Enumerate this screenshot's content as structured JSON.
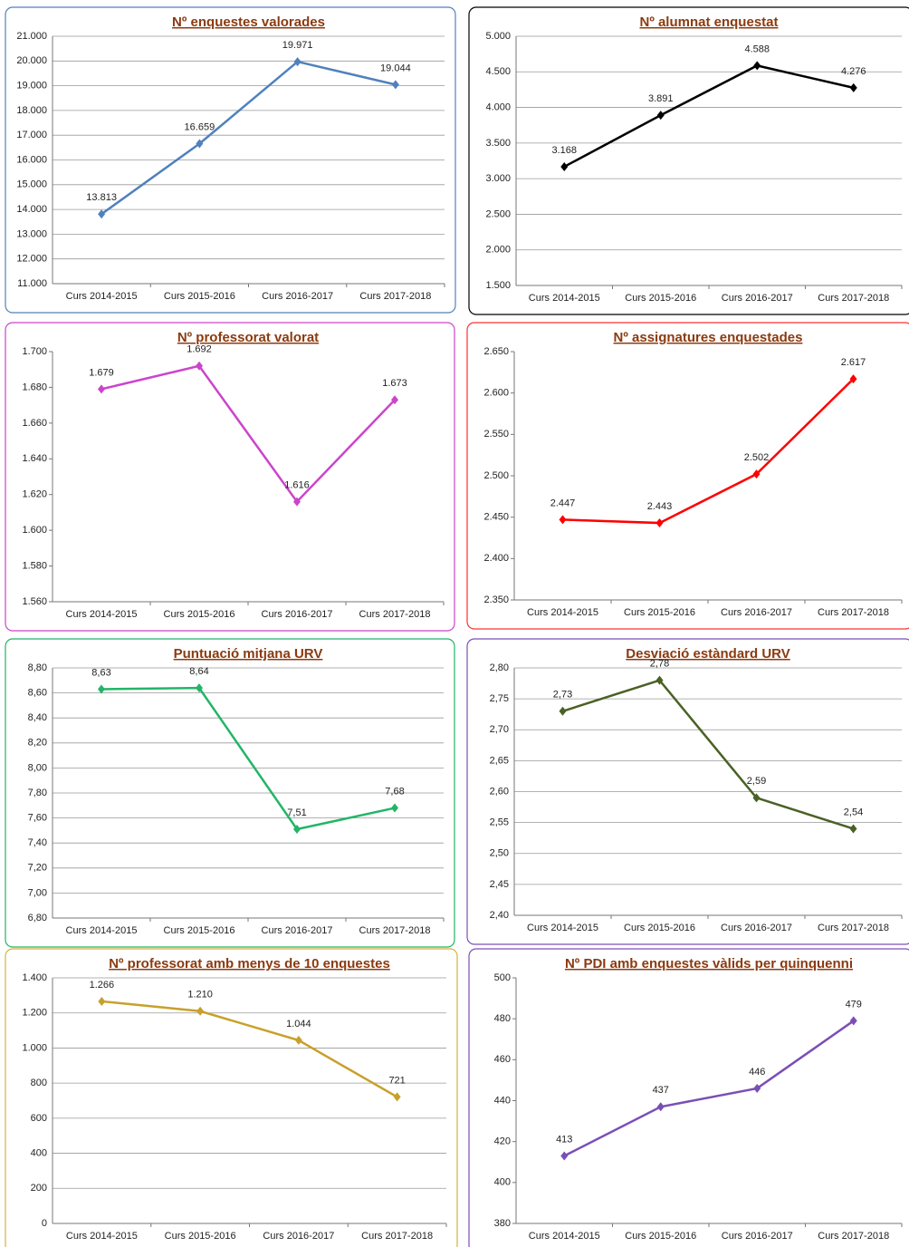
{
  "chart_data": [
    {
      "type": "line",
      "title": "Nº enquestes valorades",
      "categories": [
        "Curs 2014-2015",
        "Curs 2015-2016",
        "Curs 2016-2017",
        "Curs 2017-2018"
      ],
      "values": [
        13813,
        16659,
        19971,
        19044
      ],
      "value_labels": [
        "13.813",
        "16.659",
        "19.971",
        "19.044"
      ],
      "color": "#4f81bd",
      "ylim": [
        11000,
        21000
      ],
      "yticks": [
        {
          "value": 11000,
          "label": "11.000"
        },
        {
          "value": 12000,
          "label": "12.000"
        },
        {
          "value": 13000,
          "label": "13.000"
        },
        {
          "value": 14000,
          "label": "14.000"
        },
        {
          "value": 15000,
          "label": "15.000"
        },
        {
          "value": 16000,
          "label": "16.000"
        },
        {
          "value": 17000,
          "label": "17.000"
        },
        {
          "value": 18000,
          "label": "18.000"
        },
        {
          "value": 19000,
          "label": "19.000"
        },
        {
          "value": 20000,
          "label": "20.000"
        },
        {
          "value": 21000,
          "label": "21.000"
        }
      ],
      "grid": true
    },
    {
      "type": "line",
      "title": "Nº alumnat enquestat",
      "categories": [
        "Curs 2014-2015",
        "Curs 2015-2016",
        "Curs 2016-2017",
        "Curs 2017-2018"
      ],
      "values": [
        3168,
        3891,
        4588,
        4276
      ],
      "value_labels": [
        "3.168",
        "3.891",
        "4.588",
        "4.276"
      ],
      "color": "#000000",
      "ylim": [
        1500,
        5000
      ],
      "yticks": [
        {
          "value": 1500,
          "label": "1.500"
        },
        {
          "value": 2000,
          "label": "2.000"
        },
        {
          "value": 2500,
          "label": "2.500"
        },
        {
          "value": 3000,
          "label": "3.000"
        },
        {
          "value": 3500,
          "label": "3.500"
        },
        {
          "value": 4000,
          "label": "4.000"
        },
        {
          "value": 4500,
          "label": "4.500"
        },
        {
          "value": 5000,
          "label": "5.000"
        }
      ],
      "grid": true
    },
    {
      "type": "line",
      "title": "Nº professorat valorat",
      "categories": [
        "Curs 2014-2015",
        "Curs 2015-2016",
        "Curs 2016-2017",
        "Curs 2017-2018"
      ],
      "values": [
        1679,
        1692,
        1616,
        1673
      ],
      "value_labels": [
        "1.679",
        "1.692",
        "1.616",
        "1.673"
      ],
      "color": "#cc44cc",
      "ylim": [
        1560,
        1700
      ],
      "yticks": [
        {
          "value": 1560,
          "label": "1.560"
        },
        {
          "value": 1580,
          "label": "1.580"
        },
        {
          "value": 1600,
          "label": "1.600"
        },
        {
          "value": 1620,
          "label": "1.620"
        },
        {
          "value": 1640,
          "label": "1.640"
        },
        {
          "value": 1660,
          "label": "1.660"
        },
        {
          "value": 1680,
          "label": "1.680"
        },
        {
          "value": 1700,
          "label": "1.700"
        }
      ],
      "grid": false
    },
    {
      "type": "line",
      "title": "Nº assignatures enquestades",
      "categories": [
        "Curs 2014-2015",
        "Curs 2015-2016",
        "Curs 2016-2017",
        "Curs 2017-2018"
      ],
      "values": [
        2447,
        2443,
        2502,
        2617
      ],
      "value_labels": [
        "2.447",
        "2.443",
        "2.502",
        "2.617"
      ],
      "color": "#ff0000",
      "ylim": [
        2350,
        2650
      ],
      "yticks": [
        {
          "value": 2350,
          "label": "2.350"
        },
        {
          "value": 2400,
          "label": "2.400"
        },
        {
          "value": 2450,
          "label": "2.450"
        },
        {
          "value": 2500,
          "label": "2.500"
        },
        {
          "value": 2550,
          "label": "2.550"
        },
        {
          "value": 2600,
          "label": "2.600"
        },
        {
          "value": 2650,
          "label": "2.650"
        }
      ],
      "grid": false
    },
    {
      "type": "line",
      "title": "Puntuació mitjana URV",
      "categories": [
        "Curs 2014-2015",
        "Curs 2015-2016",
        "Curs 2016-2017",
        "Curs 2017-2018"
      ],
      "values": [
        8.63,
        8.64,
        7.51,
        7.68
      ],
      "value_labels": [
        "8,63",
        "8,64",
        "7,51",
        "7,68"
      ],
      "color": "#22b566",
      "ylim": [
        6.8,
        8.8
      ],
      "yticks": [
        {
          "value": 6.8,
          "label": "6,80"
        },
        {
          "value": 7.0,
          "label": "7,00"
        },
        {
          "value": 7.2,
          "label": "7,20"
        },
        {
          "value": 7.4,
          "label": "7,40"
        },
        {
          "value": 7.6,
          "label": "7,60"
        },
        {
          "value": 7.8,
          "label": "7,80"
        },
        {
          "value": 8.0,
          "label": "8,00"
        },
        {
          "value": 8.2,
          "label": "8,20"
        },
        {
          "value": 8.4,
          "label": "8,40"
        },
        {
          "value": 8.6,
          "label": "8,60"
        },
        {
          "value": 8.8,
          "label": "8,80"
        }
      ],
      "grid": true
    },
    {
      "type": "line",
      "title": "Desviació estàndard URV",
      "categories": [
        "Curs 2014-2015",
        "Curs 2015-2016",
        "Curs 2016-2017",
        "Curs 2017-2018"
      ],
      "values": [
        2.73,
        2.78,
        2.59,
        2.54
      ],
      "value_labels": [
        "2,73",
        "2,78",
        "2,59",
        "2,54"
      ],
      "color": "#4a6125",
      "ylim": [
        2.4,
        2.8
      ],
      "yticks": [
        {
          "value": 2.4,
          "label": "2,40"
        },
        {
          "value": 2.45,
          "label": "2,45"
        },
        {
          "value": 2.5,
          "label": "2,50"
        },
        {
          "value": 2.55,
          "label": "2,55"
        },
        {
          "value": 2.6,
          "label": "2,60"
        },
        {
          "value": 2.65,
          "label": "2,65"
        },
        {
          "value": 2.7,
          "label": "2,70"
        },
        {
          "value": 2.75,
          "label": "2,75"
        },
        {
          "value": 2.8,
          "label": "2,80"
        }
      ],
      "grid": true
    },
    {
      "type": "line",
      "title": "Nº professorat amb menys de 10 enquestes",
      "categories": [
        "Curs 2014-2015",
        "Curs 2015-2016",
        "Curs 2016-2017",
        "Curs 2017-2018"
      ],
      "values": [
        1266,
        1210,
        1044,
        721
      ],
      "value_labels": [
        "1.266",
        "1.210",
        "1.044",
        "721"
      ],
      "color": "#c8a02a",
      "ylim": [
        0,
        1400
      ],
      "yticks": [
        0,
        200,
        400,
        600,
        800,
        {
          "value": 1000,
          "label": "1.000"
        },
        {
          "value": 1200,
          "label": "1.200"
        },
        {
          "value": 1400,
          "label": "1.400"
        }
      ],
      "grid": true
    },
    {
      "type": "line",
      "title": "Nº PDI amb enquestes vàlids per quinquenni",
      "categories": [
        "Curs 2014-2015",
        "Curs 2015-2016",
        "Curs 2016-2017",
        "Curs 2017-2018"
      ],
      "values": [
        413,
        437,
        446,
        479
      ],
      "color": "#7a4fb5",
      "ylim": [
        380,
        500
      ],
      "yticks": [
        380,
        400,
        420,
        440,
        460,
        480,
        500
      ],
      "grid": false
    }
  ]
}
